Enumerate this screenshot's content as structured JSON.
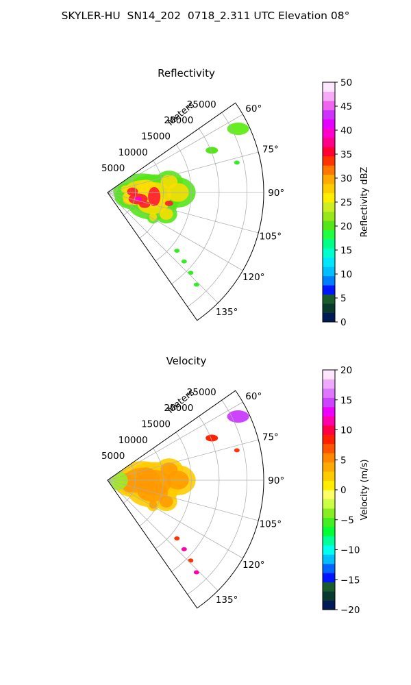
{
  "figure": {
    "title": "SKYLER-HU  SN14_202  0718_2.311 UTC Elevation 08°"
  },
  "colors": {
    "grid": "#b0b0b0",
    "frame": "#000000"
  },
  "chart_data": [
    {
      "type": "heatmap",
      "title": "Reflectivity",
      "radial_label": "Meters",
      "radial_ticks": [
        "5000",
        "10000",
        "15000",
        "20000",
        "25000"
      ],
      "radial_tick_values": [
        5000,
        10000,
        15000,
        20000,
        25000
      ],
      "rlim": [
        0,
        28000
      ],
      "angle_ticks": [
        "60°",
        "75°",
        "90°",
        "105°",
        "120°",
        "135°"
      ],
      "angle_tick_values": [
        60,
        75,
        90,
        105,
        120,
        135
      ],
      "azimuth_range": [
        55,
        145
      ],
      "grid": true,
      "colorbar": {
        "label": "Reflectivity dBZ",
        "ticks": [
          "0",
          "5",
          "10",
          "15",
          "20",
          "25",
          "30",
          "35",
          "40",
          "45",
          "50"
        ],
        "range": [
          0,
          50
        ],
        "colors": [
          "#001b55",
          "#0a3a2e",
          "#1a5a2c",
          "#0015ff",
          "#007cff",
          "#00bfff",
          "#00e6ff",
          "#00ffcc",
          "#00ff88",
          "#20ff40",
          "#55e61a",
          "#99e61a",
          "#ccee22",
          "#ffee00",
          "#ffcc00",
          "#ffaa00",
          "#ff7700",
          "#ff3300",
          "#ff0033",
          "#ff0088",
          "#ff00cc",
          "#e600ff",
          "#cc33ff",
          "#ee66ee",
          "#f7aaf7",
          "#ffe6ff"
        ]
      }
    },
    {
      "type": "heatmap",
      "title": "Velocity",
      "radial_label": "Meters",
      "radial_ticks": [
        "5000",
        "10000",
        "15000",
        "20000",
        "25000"
      ],
      "radial_tick_values": [
        5000,
        10000,
        15000,
        20000,
        25000
      ],
      "rlim": [
        0,
        28000
      ],
      "angle_ticks": [
        "60°",
        "75°",
        "90°",
        "105°",
        "120°",
        "135°"
      ],
      "angle_tick_values": [
        60,
        75,
        90,
        105,
        120,
        135
      ],
      "azimuth_range": [
        55,
        145
      ],
      "grid": true,
      "colorbar": {
        "label": "Velocity (m/s)",
        "ticks": [
          "−20",
          "−15",
          "−10",
          "−5",
          "0",
          "5",
          "10",
          "15",
          "20"
        ],
        "range": [
          -20,
          20
        ],
        "colors": [
          "#001b55",
          "#0a3a2e",
          "#1a5a2c",
          "#0015ff",
          "#0066ff",
          "#00bfff",
          "#00ffee",
          "#00ff99",
          "#00ff33",
          "#44ee22",
          "#88ee22",
          "#ccff44",
          "#ffff66",
          "#ffee00",
          "#ffcc00",
          "#ffaa00",
          "#ff8800",
          "#ff5500",
          "#ff2200",
          "#ff0044",
          "#ff00aa",
          "#ee00ff",
          "#cc44ff",
          "#dd77ff",
          "#eeaaff",
          "#ffe6ff"
        ]
      }
    }
  ]
}
